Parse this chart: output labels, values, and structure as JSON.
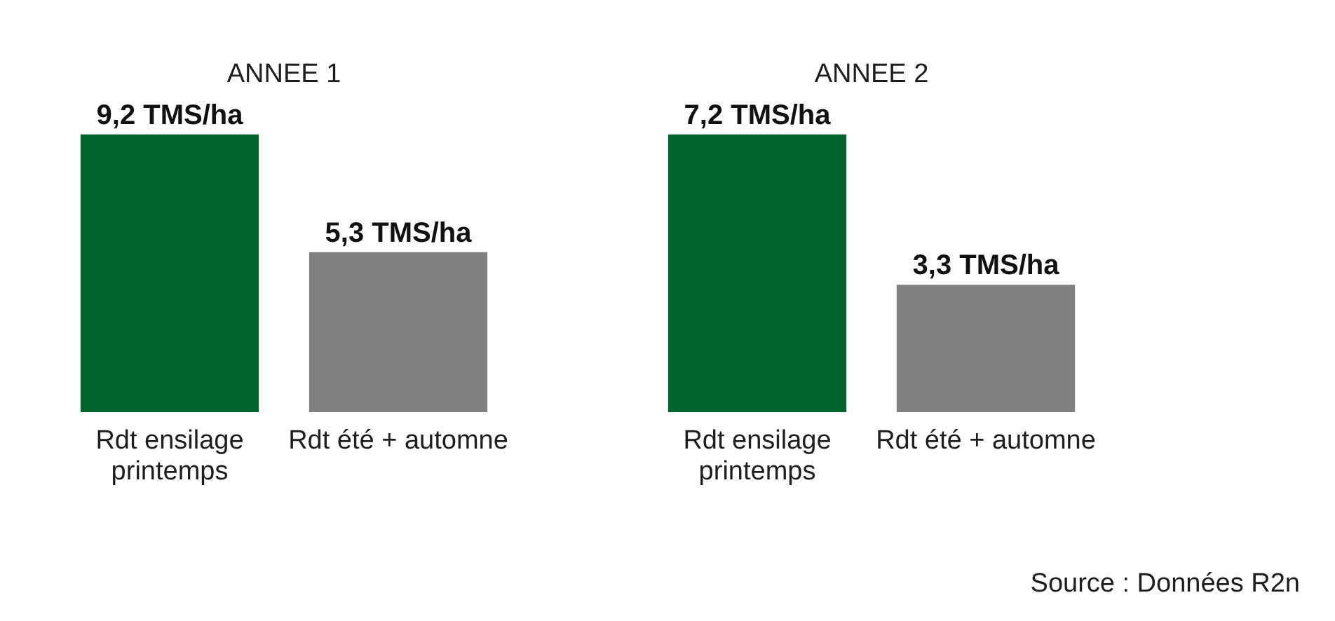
{
  "chart_data": [
    {
      "type": "bar",
      "title": "ANNEE 1",
      "categories": [
        "Rdt ensilage printemps",
        "Rdt été + automne"
      ],
      "values": [
        9.2,
        5.3
      ],
      "colors": [
        "#02652e",
        "#808080"
      ],
      "value_labels": [
        "9,2 TMS/ha",
        "5,3 TMS/ha"
      ],
      "tick_labels": "x"
    },
    {
      "type": "bar",
      "title": "ANNEE 2",
      "categories": [
        "Rdt ensilage printemps",
        "Rdt été + automne"
      ],
      "values": [
        7.2,
        3.3
      ],
      "colors": [
        "#02652e",
        "#808080"
      ],
      "value_labels": [
        "7,2 TMS/ha",
        "3,3 TMS/ha"
      ],
      "tick_labels": "x",
      "annotations": [
        "Source : Données R2n"
      ]
    }
  ]
}
